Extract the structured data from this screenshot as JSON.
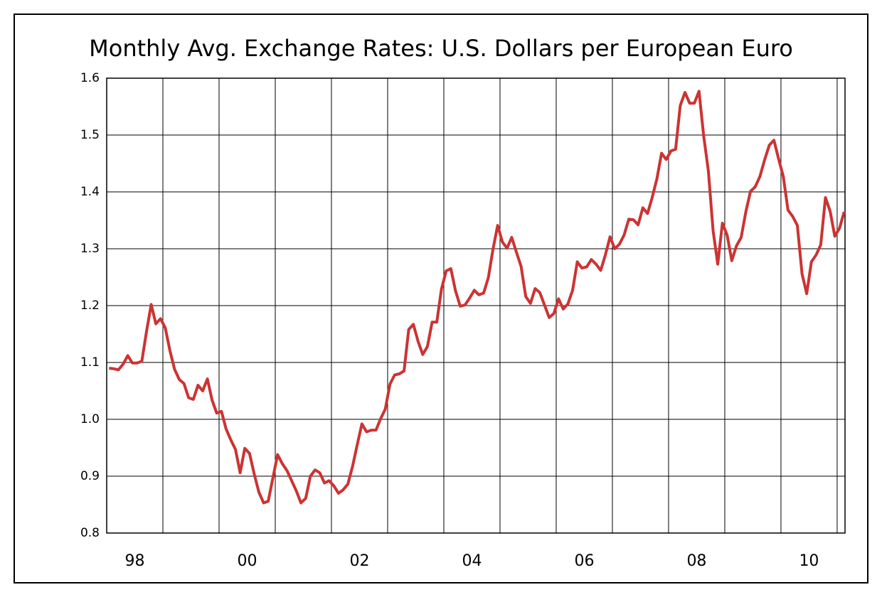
{
  "chart_data": {
    "type": "line",
    "title": "Monthly Avg. Exchange Rates: U.S. Dollars per European Euro",
    "xlim": [
      1998,
      2011.14
    ],
    "ylim": [
      0.8,
      1.6
    ],
    "yticks": [
      0.8,
      0.9,
      {
        "value": 1.0,
        "label": "1.0"
      },
      1.1,
      1.2,
      1.3,
      1.4,
      1.5,
      1.6
    ],
    "xticks": [
      {
        "value": 1998.5,
        "label": "98"
      },
      {
        "value": 2000.5,
        "label": "00"
      },
      {
        "value": 2002.5,
        "label": "02"
      },
      {
        "value": 2004.5,
        "label": "04"
      },
      {
        "value": 2006.5,
        "label": "06"
      },
      {
        "value": 2008.5,
        "label": "08"
      },
      {
        "value": 2010.5,
        "label": "10"
      }
    ],
    "xgrid": [
      1999,
      2000,
      2001,
      2002,
      2003,
      2004,
      2005,
      2006,
      2007,
      2008,
      2009,
      2010,
      2011
    ],
    "grid": true,
    "x": [
      1998.042,
      1998.125,
      1998.208,
      1998.292,
      1998.375,
      1998.458,
      1998.542,
      1998.625,
      1998.708,
      1998.792,
      1998.875,
      1998.958,
      1999.042,
      1999.125,
      1999.208,
      1999.292,
      1999.375,
      1999.458,
      1999.542,
      1999.625,
      1999.708,
      1999.792,
      1999.875,
      1999.958,
      2000.042,
      2000.125,
      2000.208,
      2000.292,
      2000.375,
      2000.458,
      2000.542,
      2000.625,
      2000.708,
      2000.792,
      2000.875,
      2000.958,
      2001.042,
      2001.125,
      2001.208,
      2001.292,
      2001.375,
      2001.458,
      2001.542,
      2001.625,
      2001.708,
      2001.792,
      2001.875,
      2001.958,
      2002.042,
      2002.125,
      2002.208,
      2002.292,
      2002.375,
      2002.458,
      2002.542,
      2002.625,
      2002.708,
      2002.792,
      2002.875,
      2002.958,
      2003.042,
      2003.125,
      2003.208,
      2003.292,
      2003.375,
      2003.458,
      2003.542,
      2003.625,
      2003.708,
      2003.792,
      2003.875,
      2003.958,
      2004.042,
      2004.125,
      2004.208,
      2004.292,
      2004.375,
      2004.458,
      2004.542,
      2004.625,
      2004.708,
      2004.792,
      2004.875,
      2004.958,
      2005.042,
      2005.125,
      2005.208,
      2005.292,
      2005.375,
      2005.458,
      2005.542,
      2005.625,
      2005.708,
      2005.792,
      2005.875,
      2005.958,
      2006.042,
      2006.125,
      2006.208,
      2006.292,
      2006.375,
      2006.458,
      2006.542,
      2006.625,
      2006.708,
      2006.792,
      2006.875,
      2006.958,
      2007.042,
      2007.125,
      2007.208,
      2007.292,
      2007.375,
      2007.458,
      2007.542,
      2007.625,
      2007.708,
      2007.792,
      2007.875,
      2007.958,
      2008.042,
      2008.125,
      2008.208,
      2008.292,
      2008.375,
      2008.458,
      2008.542,
      2008.625,
      2008.708,
      2008.792,
      2008.875,
      2008.958,
      2009.042,
      2009.125,
      2009.208,
      2009.292,
      2009.375,
      2009.458,
      2009.542,
      2009.625,
      2009.708,
      2009.792,
      2009.875,
      2009.958,
      2010.042,
      2010.125,
      2010.208,
      2010.292,
      2010.375,
      2010.458,
      2010.542,
      2010.625,
      2010.708,
      2010.792,
      2010.875,
      2010.958,
      2011.042,
      2011.125
    ],
    "series": [
      {
        "color": "#cc3333",
        "values": [
          1.09,
          1.089,
          1.087,
          1.097,
          1.112,
          1.099,
          1.099,
          1.102,
          1.154,
          1.202,
          1.168,
          1.177,
          1.161,
          1.121,
          1.088,
          1.07,
          1.063,
          1.038,
          1.035,
          1.06,
          1.05,
          1.071,
          1.034,
          1.011,
          1.014,
          0.983,
          0.964,
          0.947,
          0.906,
          0.949,
          0.94,
          0.904,
          0.872,
          0.853,
          0.856,
          0.897,
          0.938,
          0.922,
          0.91,
          0.892,
          0.874,
          0.853,
          0.861,
          0.9,
          0.911,
          0.906,
          0.888,
          0.892,
          0.883,
          0.87,
          0.876,
          0.886,
          0.917,
          0.955,
          0.992,
          0.978,
          0.981,
          0.981,
          1.001,
          1.018,
          1.062,
          1.078,
          1.08,
          1.085,
          1.158,
          1.167,
          1.137,
          1.114,
          1.128,
          1.171,
          1.171,
          1.229,
          1.261,
          1.265,
          1.226,
          1.199,
          1.201,
          1.213,
          1.227,
          1.219,
          1.222,
          1.249,
          1.299,
          1.341,
          1.312,
          1.301,
          1.32,
          1.294,
          1.269,
          1.216,
          1.204,
          1.23,
          1.223,
          1.201,
          1.179,
          1.186,
          1.212,
          1.194,
          1.203,
          1.227,
          1.277,
          1.266,
          1.268,
          1.281,
          1.273,
          1.262,
          1.289,
          1.321,
          1.3,
          1.308,
          1.324,
          1.352,
          1.351,
          1.342,
          1.372,
          1.362,
          1.39,
          1.423,
          1.468,
          1.457,
          1.472,
          1.475,
          1.552,
          1.575,
          1.556,
          1.556,
          1.577,
          1.498,
          1.437,
          1.332,
          1.273,
          1.345,
          1.324,
          1.279,
          1.305,
          1.32,
          1.365,
          1.401,
          1.409,
          1.427,
          1.456,
          1.482,
          1.491,
          1.458,
          1.427,
          1.368,
          1.357,
          1.341,
          1.256,
          1.221,
          1.277,
          1.289,
          1.307,
          1.39,
          1.366,
          1.322,
          1.336,
          1.365
        ]
      }
    ]
  }
}
